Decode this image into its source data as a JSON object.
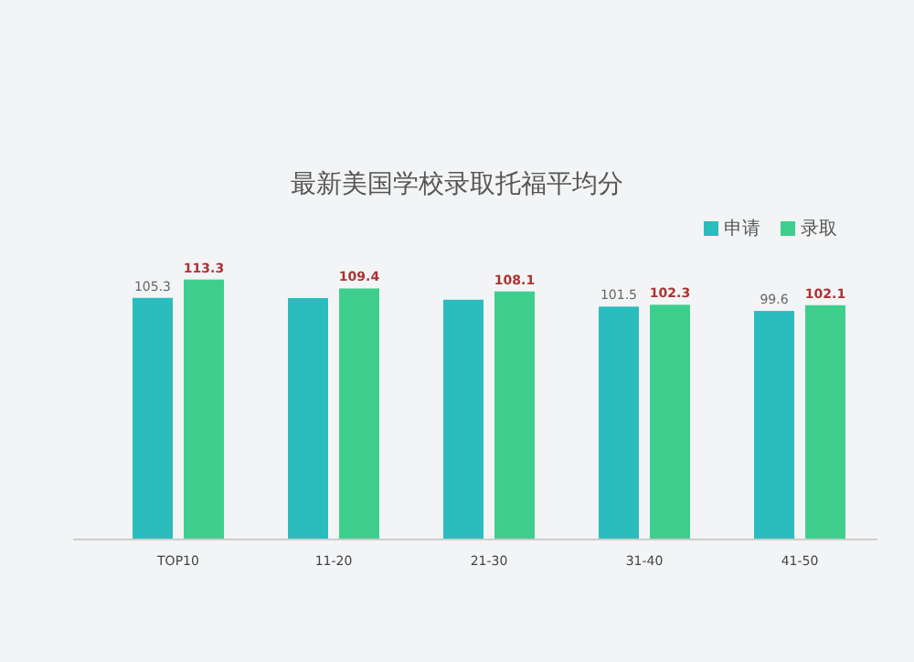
{
  "chart_data": {
    "type": "bar",
    "title": "最新美国学校录取托福平均分",
    "categories": [
      "TOP10",
      "11-20",
      "21-30",
      "31-40",
      "41-50"
    ],
    "series": [
      {
        "name": "申请",
        "color": "#2bbdbd",
        "values": [
          105.3,
          105.2,
          104.5,
          101.5,
          99.6
        ],
        "value_labels": [
          "105.3",
          null,
          null,
          "101.5",
          "99.6"
        ]
      },
      {
        "name": "录取",
        "color": "#3ecf8f",
        "values": [
          113.3,
          109.4,
          108.1,
          102.3,
          102.1
        ],
        "value_labels": [
          "113.3",
          "109.4",
          "108.1",
          "102.3",
          "102.1"
        ]
      }
    ],
    "tick_labels": "x",
    "legend": "top right"
  }
}
